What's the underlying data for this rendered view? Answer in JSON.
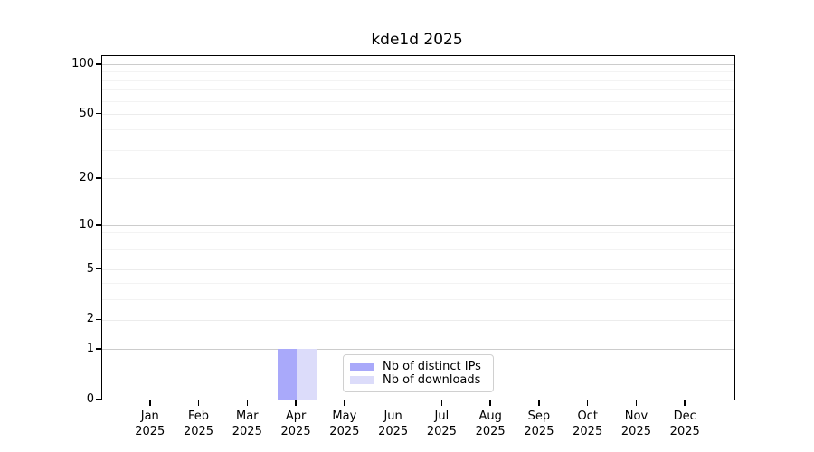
{
  "chart_data": {
    "type": "bar",
    "title": "kde1d 2025",
    "categories": [
      "Jan",
      "Feb",
      "Mar",
      "Apr",
      "May",
      "Jun",
      "Jul",
      "Aug",
      "Sep",
      "Oct",
      "Nov",
      "Dec"
    ],
    "category_year": "2025",
    "series": [
      {
        "name": "Nb of distinct IPs",
        "color": "#a9a9fa",
        "values": [
          0,
          0,
          0,
          1,
          0,
          0,
          0,
          0,
          0,
          0,
          0,
          0
        ]
      },
      {
        "name": "Nb of downloads",
        "color": "#dcdcfa",
        "values": [
          0,
          0,
          0,
          1,
          0,
          0,
          0,
          0,
          0,
          0,
          0,
          0
        ]
      }
    ],
    "xlabel": "",
    "ylabel": "",
    "yscale": "log1p",
    "ylim": [
      0,
      112
    ],
    "yticks": [
      0,
      1,
      2,
      5,
      10,
      20,
      50,
      100
    ],
    "yticks_decade": [
      1,
      10,
      100
    ],
    "yticks_minor": [
      3,
      4,
      6,
      7,
      8,
      9,
      30,
      40,
      60,
      70,
      80,
      90
    ],
    "grid": "horizontal",
    "legend_position": "lower center inside"
  }
}
